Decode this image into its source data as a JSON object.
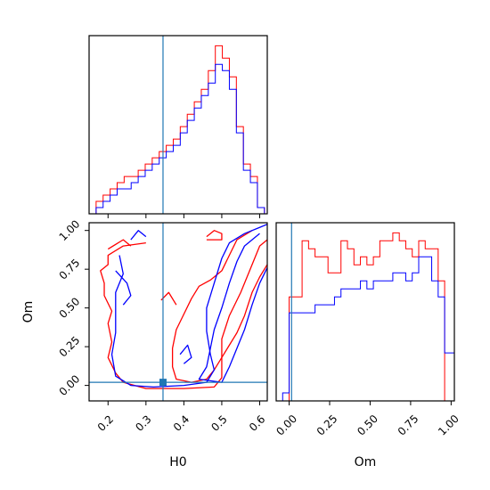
{
  "chart_data": [
    {
      "type": "histogram",
      "panel": "H0-marginal",
      "xlim": [
        0.15,
        0.62
      ],
      "truth": 0.345,
      "bin_edges": [
        0.15,
        0.1685,
        0.187,
        0.2055,
        0.224,
        0.2425,
        0.261,
        0.2795,
        0.298,
        0.3165,
        0.335,
        0.3535,
        0.372,
        0.3905,
        0.409,
        0.4275,
        0.446,
        0.4645,
        0.483,
        0.5015,
        0.52,
        0.5385,
        0.557,
        0.5755,
        0.594,
        0.6125,
        0.62
      ],
      "series": [
        {
          "color": "#ff0000",
          "values": [
            0,
            2,
            3,
            4,
            5,
            6,
            6,
            7,
            8,
            9,
            10,
            11,
            12,
            14,
            16,
            18,
            20,
            23,
            27,
            25,
            22,
            14,
            8,
            6,
            1,
            0
          ]
        },
        {
          "color": "#0000ff",
          "values": [
            0,
            1,
            2,
            3,
            4,
            4,
            5,
            6,
            7,
            8,
            9,
            10,
            11,
            13,
            15,
            17,
            19,
            21,
            24,
            23,
            20,
            13,
            7,
            5,
            1,
            0
          ]
        }
      ]
    },
    {
      "type": "histogram",
      "panel": "Om-marginal",
      "xlabel": "Om",
      "xlim": [
        -0.08,
        1.02
      ],
      "xticks": [
        "0.00",
        "0.25",
        "0.50",
        "0.75",
        "1.00"
      ],
      "truth": 0.015,
      "bin_edges": [
        -0.04,
        0.0,
        0.04,
        0.08,
        0.12,
        0.16,
        0.2,
        0.24,
        0.28,
        0.32,
        0.36,
        0.4,
        0.44,
        0.48,
        0.52,
        0.56,
        0.6,
        0.64,
        0.68,
        0.72,
        0.76,
        0.8,
        0.84,
        0.88,
        0.92,
        0.96,
        1.0,
        1.02
      ],
      "series": [
        {
          "color": "#ff0000",
          "values": [
            0,
            13,
            13,
            20,
            19,
            18,
            18,
            16,
            16,
            20,
            19,
            17,
            18,
            17,
            18,
            20,
            20,
            21,
            20,
            19,
            18,
            20,
            19,
            19,
            15,
            0,
            0
          ]
        },
        {
          "color": "#0000ff",
          "values": [
            1,
            11,
            11,
            11,
            11,
            12,
            12,
            12,
            13,
            14,
            14,
            14,
            15,
            14,
            15,
            15,
            15,
            16,
            16,
            15,
            16,
            18,
            18,
            15,
            13,
            6,
            6
          ]
        }
      ]
    },
    {
      "type": "contour",
      "panel": "H0-Om-joint",
      "xlabel": "H0",
      "ylabel": "Om",
      "xlim": [
        0.15,
        0.62
      ],
      "ylim": [
        -0.1,
        1.05
      ],
      "xticks": [
        "0.2",
        "0.3",
        "0.4",
        "0.5",
        "0.6"
      ],
      "yticks": [
        "0.00",
        "0.25",
        "0.50",
        "0.75",
        "1.00"
      ],
      "truth": {
        "H0": 0.345,
        "Om": 0.02
      },
      "series": [
        {
          "color": "#ff0000",
          "contours": [
            [
              [
                0.3,
                0.92
              ],
              [
                0.24,
                0.9
              ],
              [
                0.2,
                0.84
              ],
              [
                0.2,
                0.78
              ],
              [
                0.18,
                0.74
              ],
              [
                0.19,
                0.66
              ],
              [
                0.19,
                0.58
              ],
              [
                0.21,
                0.48
              ],
              [
                0.2,
                0.4
              ],
              [
                0.21,
                0.28
              ],
              [
                0.2,
                0.18
              ],
              [
                0.22,
                0.08
              ],
              [
                0.24,
                0.02
              ],
              [
                0.3,
                -0.02
              ],
              [
                0.4,
                -0.02
              ],
              [
                0.48,
                -0.01
              ],
              [
                0.5,
                0.05
              ],
              [
                0.5,
                0.2
              ],
              [
                0.5,
                0.3
              ],
              [
                0.52,
                0.45
              ],
              [
                0.55,
                0.6
              ],
              [
                0.58,
                0.78
              ],
              [
                0.6,
                0.9
              ],
              [
                0.62,
                0.94
              ]
            ],
            [
              [
                0.58,
                1.0
              ],
              [
                0.54,
                0.94
              ],
              [
                0.52,
                0.84
              ],
              [
                0.5,
                0.74
              ],
              [
                0.47,
                0.68
              ],
              [
                0.44,
                0.64
              ],
              [
                0.42,
                0.56
              ],
              [
                0.4,
                0.46
              ],
              [
                0.38,
                0.36
              ],
              [
                0.37,
                0.24
              ],
              [
                0.37,
                0.12
              ],
              [
                0.38,
                0.04
              ],
              [
                0.42,
                0.02
              ],
              [
                0.46,
                0.04
              ],
              [
                0.48,
                0.1
              ],
              [
                0.5,
                0.18
              ],
              [
                0.52,
                0.26
              ],
              [
                0.54,
                0.34
              ],
              [
                0.56,
                0.45
              ],
              [
                0.58,
                0.6
              ],
              [
                0.6,
                0.7
              ],
              [
                0.62,
                0.78
              ]
            ],
            [
              [
                0.46,
                0.96
              ],
              [
                0.48,
                1.0
              ],
              [
                0.5,
                0.98
              ],
              [
                0.5,
                0.94
              ],
              [
                0.46,
                0.94
              ]
            ],
            [
              [
                0.2,
                0.88
              ],
              [
                0.24,
                0.94
              ],
              [
                0.26,
                0.9
              ]
            ],
            [
              [
                0.34,
                0.55
              ],
              [
                0.36,
                0.6
              ],
              [
                0.38,
                0.52
              ]
            ]
          ]
        },
        {
          "color": "#0000ff",
          "contours": [
            [
              [
                0.23,
                0.84
              ],
              [
                0.24,
                0.72
              ],
              [
                0.22,
                0.6
              ],
              [
                0.22,
                0.46
              ],
              [
                0.22,
                0.34
              ],
              [
                0.21,
                0.2
              ],
              [
                0.22,
                0.06
              ],
              [
                0.26,
                0.0
              ],
              [
                0.32,
                -0.01
              ],
              [
                0.4,
                0.0
              ],
              [
                0.46,
                0.02
              ],
              [
                0.48,
                0.1
              ],
              [
                0.47,
                0.2
              ],
              [
                0.46,
                0.35
              ],
              [
                0.46,
                0.5
              ],
              [
                0.48,
                0.66
              ],
              [
                0.5,
                0.82
              ],
              [
                0.52,
                0.92
              ],
              [
                0.56,
                0.98
              ],
              [
                0.6,
                1.02
              ],
              [
                0.62,
                1.04
              ]
            ],
            [
              [
                0.6,
                0.98
              ],
              [
                0.56,
                0.9
              ],
              [
                0.54,
                0.8
              ],
              [
                0.52,
                0.66
              ],
              [
                0.5,
                0.5
              ],
              [
                0.48,
                0.36
              ],
              [
                0.47,
                0.24
              ],
              [
                0.46,
                0.12
              ],
              [
                0.44,
                0.04
              ],
              [
                0.5,
                0.02
              ],
              [
                0.52,
                0.12
              ],
              [
                0.54,
                0.24
              ],
              [
                0.56,
                0.36
              ],
              [
                0.58,
                0.52
              ],
              [
                0.6,
                0.66
              ],
              [
                0.62,
                0.76
              ]
            ],
            [
              [
                0.22,
                0.74
              ],
              [
                0.25,
                0.66
              ],
              [
                0.26,
                0.58
              ],
              [
                0.24,
                0.52
              ]
            ],
            [
              [
                0.26,
                0.94
              ],
              [
                0.28,
                1.0
              ],
              [
                0.3,
                0.96
              ]
            ],
            [
              [
                0.39,
                0.2
              ],
              [
                0.41,
                0.26
              ],
              [
                0.42,
                0.18
              ],
              [
                0.4,
                0.14
              ]
            ]
          ]
        }
      ]
    }
  ]
}
